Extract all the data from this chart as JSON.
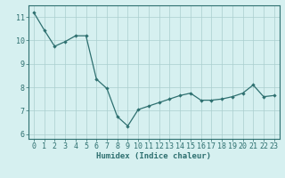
{
  "x": [
    0,
    1,
    2,
    3,
    4,
    5,
    6,
    7,
    8,
    9,
    10,
    11,
    12,
    13,
    14,
    15,
    16,
    17,
    18,
    19,
    20,
    21,
    22,
    23
  ],
  "y": [
    11.2,
    10.45,
    9.75,
    9.95,
    10.2,
    10.2,
    8.35,
    7.95,
    6.75,
    6.35,
    7.05,
    7.2,
    7.35,
    7.5,
    7.65,
    7.75,
    7.45,
    7.45,
    7.5,
    7.6,
    7.75,
    8.1,
    7.6,
    7.65
  ],
  "line_color": "#2e7070",
  "marker": "D",
  "marker_size": 2.2,
  "bg_color": "#d6f0f0",
  "grid_color": "#aacece",
  "xlabel": "Humidex (Indice chaleur)",
  "xlim": [
    -0.5,
    23.5
  ],
  "ylim": [
    5.8,
    11.5
  ],
  "yticks": [
    6,
    7,
    8,
    9,
    10,
    11
  ],
  "xticks": [
    0,
    1,
    2,
    3,
    4,
    5,
    6,
    7,
    8,
    9,
    10,
    11,
    12,
    13,
    14,
    15,
    16,
    17,
    18,
    19,
    20,
    21,
    22,
    23
  ],
  "xlabel_fontsize": 6.5,
  "tick_fontsize": 6.0,
  "line_width": 0.9
}
